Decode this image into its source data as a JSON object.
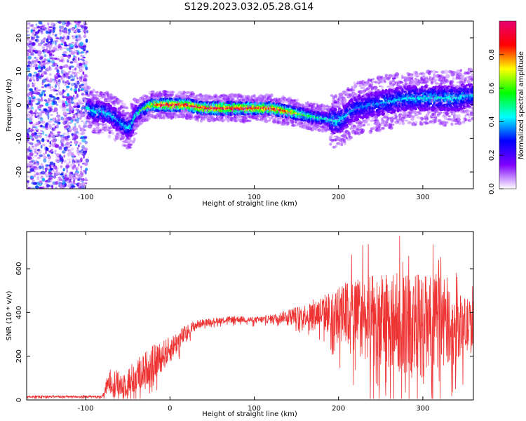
{
  "title": "S129.2023.032.05.28.G14",
  "chart_data": [
    {
      "type": "heatmap",
      "xlabel": "Height of straight line (km)",
      "ylabel": "Frequency (Hz)",
      "xlim": [
        -170,
        360
      ],
      "ylim": [
        -25,
        25
      ],
      "xticks": [
        -100,
        0,
        100,
        200,
        300
      ],
      "yticks": [
        -20,
        -10,
        0,
        10,
        20
      ],
      "colorbar": {
        "label": "Normalized spectral amplitude",
        "range": [
          0,
          1
        ],
        "ticks": [
          0.0,
          0.2,
          0.4,
          0.6,
          0.8
        ],
        "tick_labels": [
          "0.0",
          "0.2",
          "0.4",
          "0.6",
          "0.8"
        ],
        "colormap": [
          "#e60073",
          "#ff0000",
          "#ffff00",
          "#00ff00",
          "#00ffff",
          "#0000ff",
          "#8000ff",
          "#ffffff"
        ]
      },
      "noise_region_x": [
        -170,
        -98
      ],
      "frequency_trace": {
        "x": [
          -98,
          -90,
          -80,
          -70,
          -60,
          -50,
          -45,
          -40,
          -35,
          -30,
          -20,
          -10,
          0,
          20,
          40,
          60,
          80,
          100,
          120,
          140,
          160,
          180,
          200,
          210,
          220,
          240,
          260,
          280,
          300,
          320,
          340,
          360
        ],
        "y": [
          -1,
          -2,
          -2,
          -3,
          -5,
          -7,
          -6,
          -3,
          -2,
          -1,
          0,
          0,
          0,
          0,
          -1,
          -1,
          -1,
          -1,
          -1,
          -2,
          -3,
          -4,
          -5,
          -3,
          -1,
          0,
          1,
          2,
          2,
          2,
          2,
          3
        ],
        "peak_amplitude": {
          "x": [
            -98,
            -80,
            -60,
            -45,
            -30,
            -10,
            10,
            30,
            60,
            80,
            100,
            120,
            140,
            160,
            180,
            200,
            220,
            260,
            300,
            340,
            360
          ],
          "v": [
            0.45,
            0.45,
            0.4,
            0.45,
            0.6,
            0.95,
            0.95,
            0.9,
            0.95,
            0.9,
            0.9,
            0.92,
            0.85,
            0.6,
            0.5,
            0.45,
            0.35,
            0.4,
            0.45,
            0.45,
            0.4
          ]
        }
      }
    },
    {
      "type": "line",
      "xlabel": "Height of straight line (km)",
      "ylabel": "SNR (10 * v/v)",
      "xlim": [
        -170,
        360
      ],
      "ylim": [
        0,
        770
      ],
      "xticks": [
        -100,
        0,
        100,
        200,
        300
      ],
      "yticks": [
        0,
        200,
        400,
        600
      ],
      "color": "#ee3333",
      "envelope": {
        "x": [
          -170,
          -80,
          -75,
          -70,
          -60,
          -50,
          -40,
          -30,
          -20,
          -10,
          0,
          10,
          20,
          30,
          40,
          60,
          80,
          100,
          120,
          140,
          160,
          180,
          200,
          220,
          240,
          260,
          280,
          300,
          320,
          340,
          360
        ],
        "mean": [
          15,
          15,
          60,
          90,
          70,
          80,
          110,
          140,
          170,
          200,
          230,
          270,
          310,
          340,
          355,
          365,
          370,
          365,
          370,
          385,
          390,
          400,
          395,
          380,
          370,
          360,
          350,
          340,
          345,
          340,
          335
        ],
        "amplitude": [
          5,
          5,
          40,
          60,
          60,
          70,
          80,
          80,
          80,
          70,
          60,
          50,
          35,
          25,
          15,
          15,
          15,
          15,
          20,
          30,
          50,
          80,
          120,
          180,
          200,
          220,
          230,
          240,
          200,
          150,
          120
        ]
      }
    }
  ]
}
